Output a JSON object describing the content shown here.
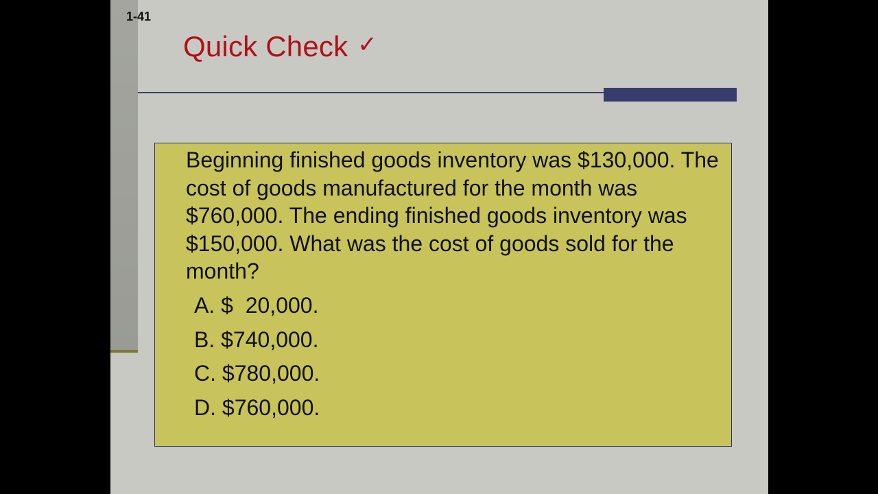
{
  "slide": {
    "number": "1-41",
    "title": "Quick Check",
    "title_icon": "checkmark-icon",
    "title_check_glyph": "✓",
    "colors": {
      "title": "#b0101a",
      "box": "#c8c35a",
      "accent": "#363d6c",
      "background": "#c8c9c2"
    },
    "question": "Beginning finished goods inventory was $130,000. The cost of goods manufactured for the month was $760,000. The ending finished goods inventory was $150,000. What was the cost of goods sold for the month?",
    "options": [
      {
        "label": "A. $  20,000."
      },
      {
        "label": "B. $740,000."
      },
      {
        "label": "C. $780,000."
      },
      {
        "label": "D. $760,000."
      }
    ]
  }
}
